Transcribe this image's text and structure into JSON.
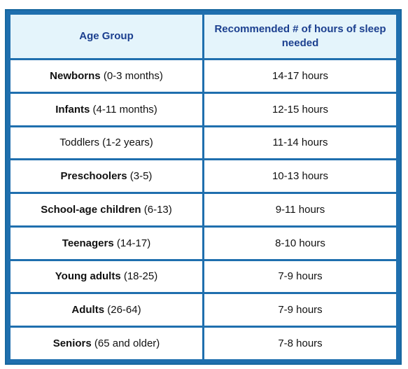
{
  "table": {
    "headers": {
      "age_group": "Age Group",
      "hours": "Recommended # of hours of sleep needed"
    },
    "rows": [
      {
        "name": "Newborns",
        "range": " (0-3 months)",
        "hours": "14-17 hours",
        "name_bold": true
      },
      {
        "name": "Infants",
        "range": " (4-11 months)",
        "hours": "12-15 hours",
        "name_bold": true
      },
      {
        "name": "Toddlers",
        "range": " (1-2 years)",
        "hours": "11-14 hours",
        "name_bold": false
      },
      {
        "name": "Preschoolers",
        "range": " (3-5)",
        "hours": "10-13 hours",
        "name_bold": true
      },
      {
        "name": "School-age children",
        "range": " (6-13)",
        "hours": "9-11 hours",
        "name_bold": true
      },
      {
        "name": "Teenagers",
        "range": " (14-17)",
        "hours": "8-10 hours",
        "name_bold": true
      },
      {
        "name": "Young adults",
        "range": " (18-25)",
        "hours": "7-9 hours",
        "name_bold": true
      },
      {
        "name": "Adults",
        "range": " (26-64)",
        "hours": "7-9 hours",
        "name_bold": true
      },
      {
        "name": "Seniors",
        "range": " (65 and older)",
        "hours": "7-8 hours",
        "name_bold": true
      }
    ]
  },
  "colors": {
    "frame": "#1f6fae",
    "header_background": "#e4f4fb",
    "header_text": "#1b3f8f"
  }
}
